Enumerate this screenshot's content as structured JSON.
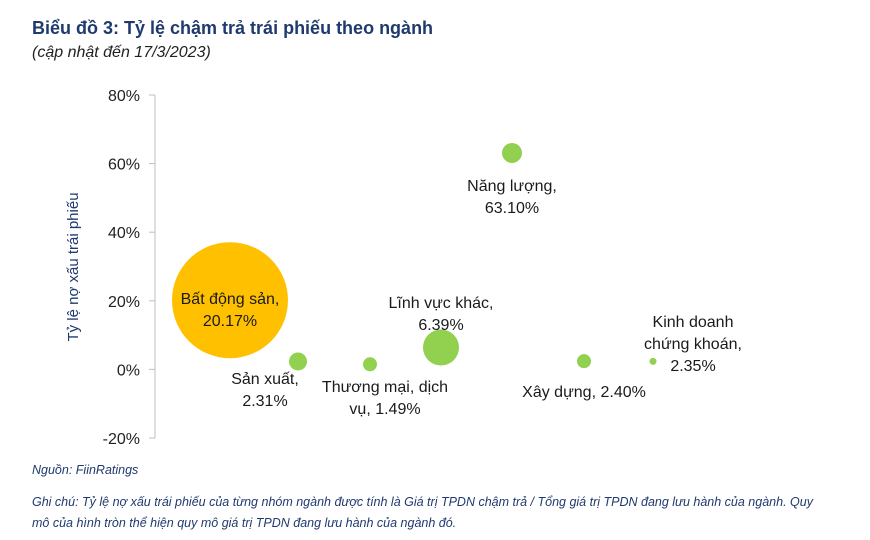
{
  "header": {
    "title": "Biểu đồ 3: Tỷ lệ chậm trả trái phiếu theo ngành",
    "subtitle": "(cập nhật đến 17/3/2023)"
  },
  "chart_data": {
    "type": "bubble",
    "ylabel": "Tỷ lệ nợ xấu trái phiếu",
    "ylim": [
      -20,
      80
    ],
    "yticks": [
      "-20%",
      "0%",
      "20%",
      "40%",
      "60%",
      "80%"
    ],
    "ytick_values": [
      -20,
      0,
      20,
      40,
      60,
      80
    ],
    "grid": false,
    "series": [
      {
        "label_lines": [
          "Bất động sản,",
          "20.17%"
        ],
        "value": 20.17,
        "color": "#ffc000"
      },
      {
        "label_lines": [
          "Sản xuất,",
          "2.31%"
        ],
        "value": 2.31,
        "color": "#92d050"
      },
      {
        "label_lines": [
          "Thương mại, dịch",
          "vụ, 1.49%"
        ],
        "value": 1.49,
        "color": "#92d050"
      },
      {
        "label_lines": [
          "Lĩnh vực khác,",
          "6.39%"
        ],
        "value": 6.39,
        "color": "#92d050"
      },
      {
        "label_lines": [
          "Năng lượng,",
          "63.10%"
        ],
        "value": 63.1,
        "color": "#92d050"
      },
      {
        "label_lines": [
          "Xây dựng, 2.40%"
        ],
        "value": 2.4,
        "color": "#92d050"
      },
      {
        "label_lines": [
          "Kinh doanh",
          "chứng khoán,",
          "2.35%"
        ],
        "value": 2.35,
        "color": "#92d050"
      }
    ]
  },
  "footer": {
    "source": "Nguồn: FiinRatings",
    "note": "Ghi chú: Tỷ lệ nợ xấu trái phiếu của từng nhóm ngành được tính là Giá trị TPDN chậm trả / Tổng giá trị TPDN đang lưu hành của ngành. Quy mô của hình tròn thể hiện quy mô giá trị TPDN đang lưu hành của ngành đó."
  }
}
